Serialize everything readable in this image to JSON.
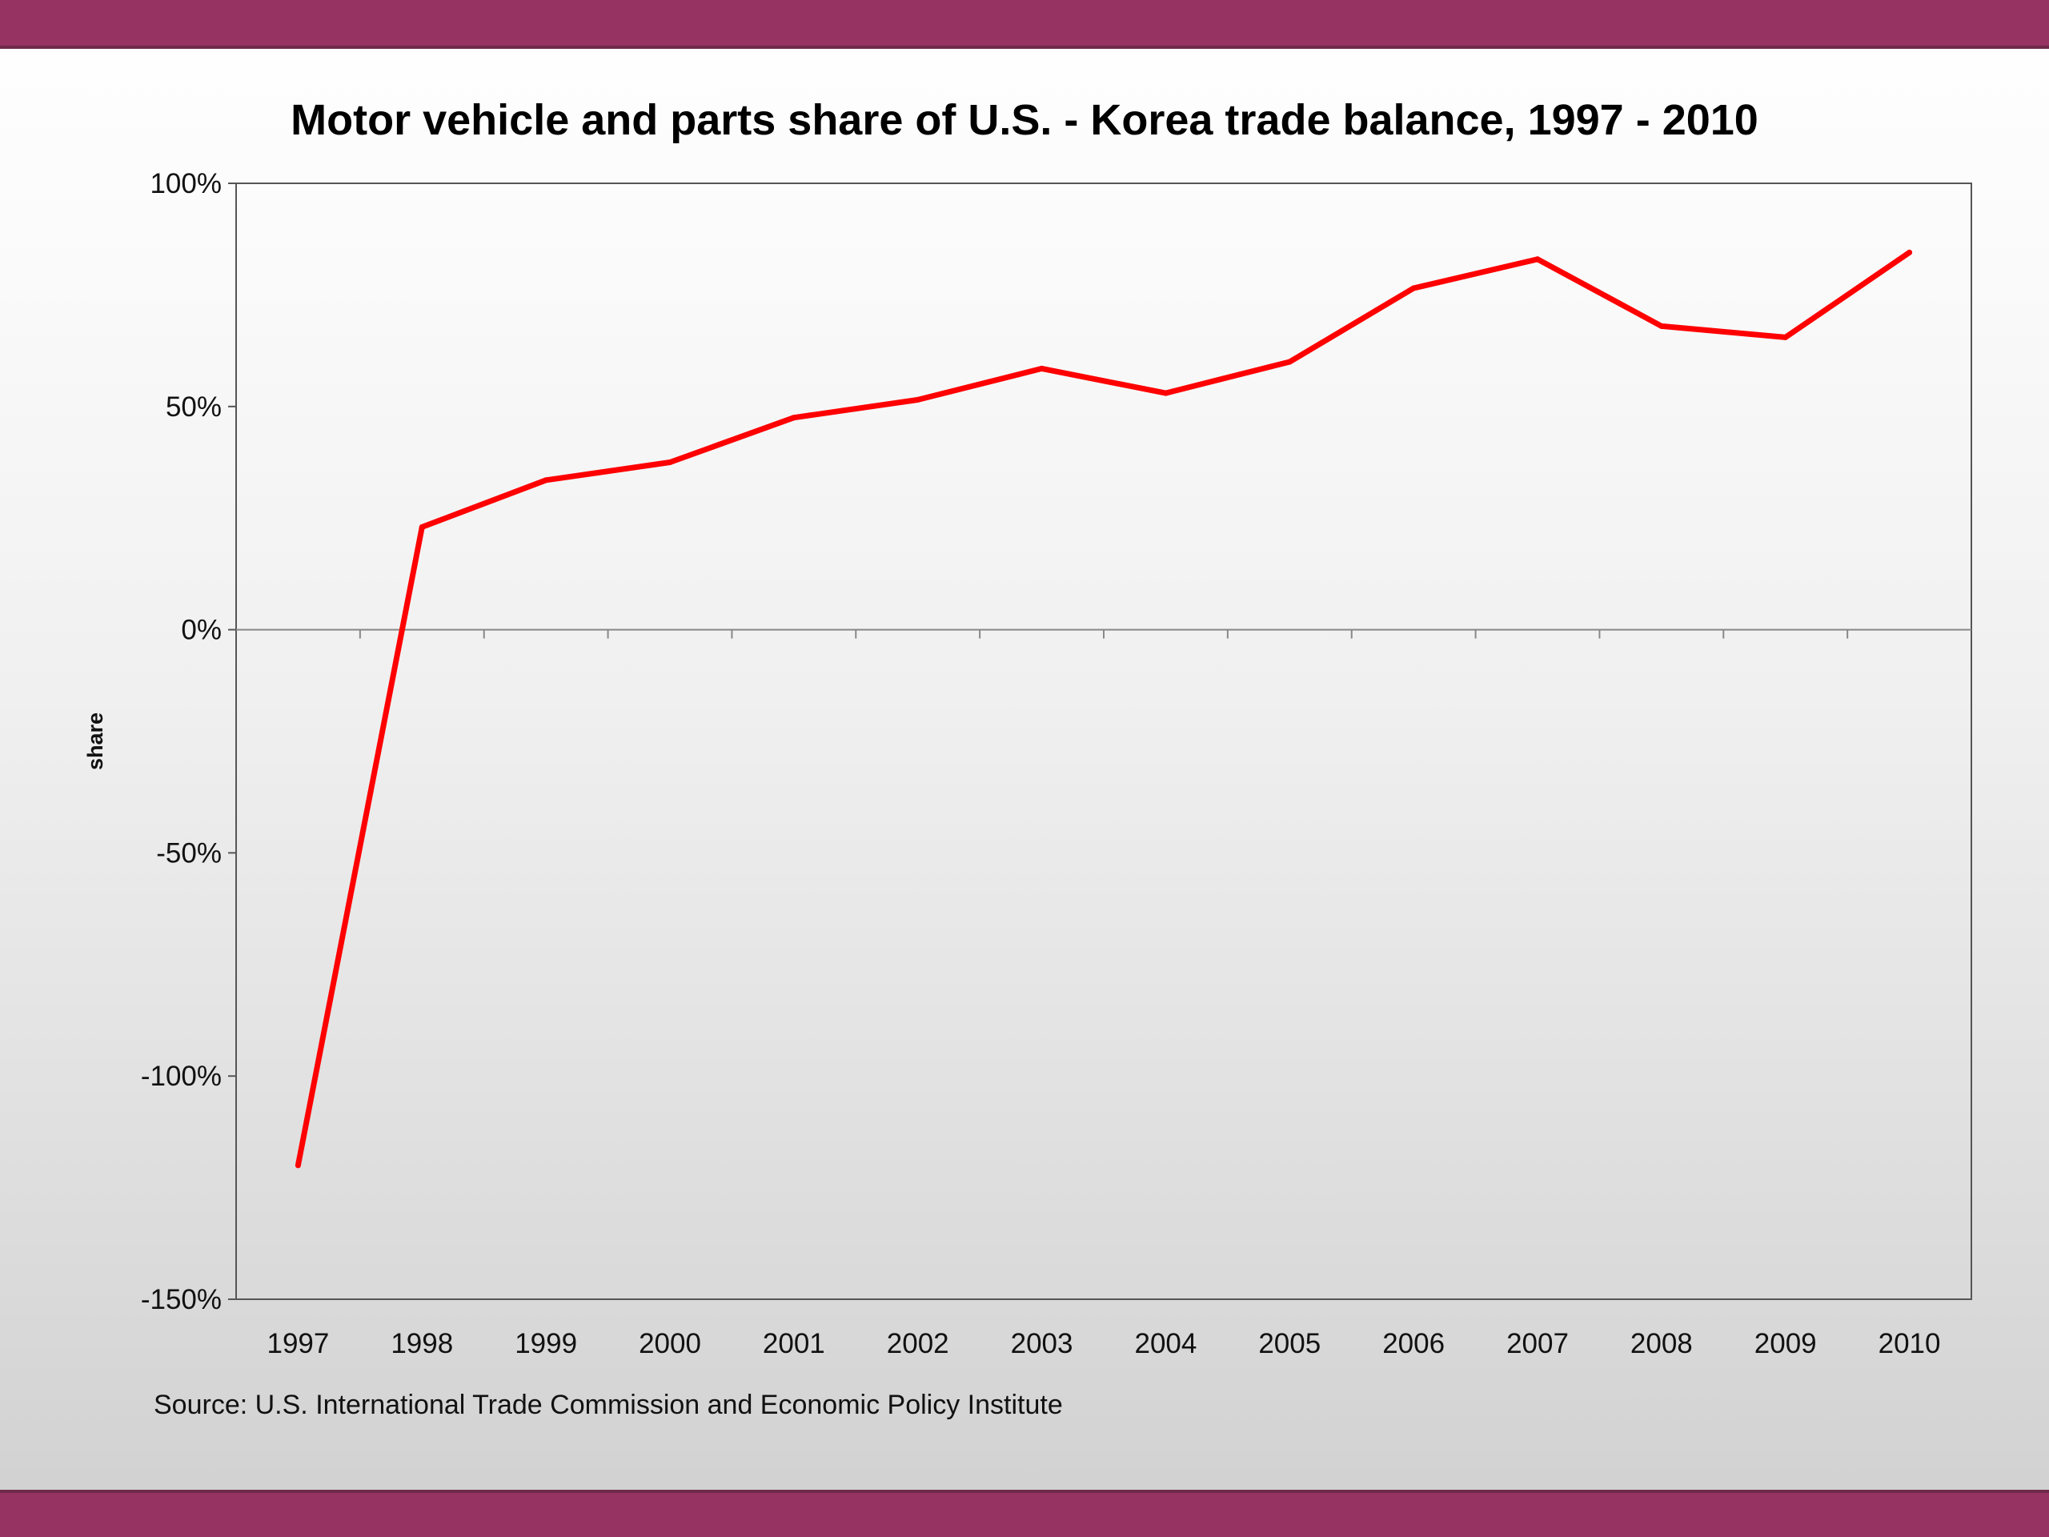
{
  "slide": {
    "band_color": "#973363",
    "source_text": "Source:  U.S. International Trade Commission and Economic Policy Institute"
  },
  "chart_data": {
    "type": "line",
    "title": "Motor vehicle and parts share of U.S. - Korea trade balance, 1997 - 2010",
    "xlabel": "",
    "ylabel": "share",
    "categories": [
      "1997",
      "1998",
      "1999",
      "2000",
      "2001",
      "2002",
      "2003",
      "2004",
      "2005",
      "2006",
      "2007",
      "2008",
      "2009",
      "2010"
    ],
    "series": [
      {
        "color": "#ff0000",
        "values": [
          -120,
          23,
          33.5,
          37.5,
          47.5,
          51.5,
          58.5,
          53,
          60,
          76.5,
          83,
          68,
          65.5,
          84.5
        ]
      }
    ],
    "y_ticks": [
      "100%",
      "50%",
      "0%",
      "-50%",
      "-100%",
      "-150%"
    ],
    "y_tick_values": [
      100,
      50,
      0,
      -50,
      -100,
      -150
    ],
    "ylim": [
      -150,
      100
    ],
    "grid": false,
    "legend": "none"
  }
}
